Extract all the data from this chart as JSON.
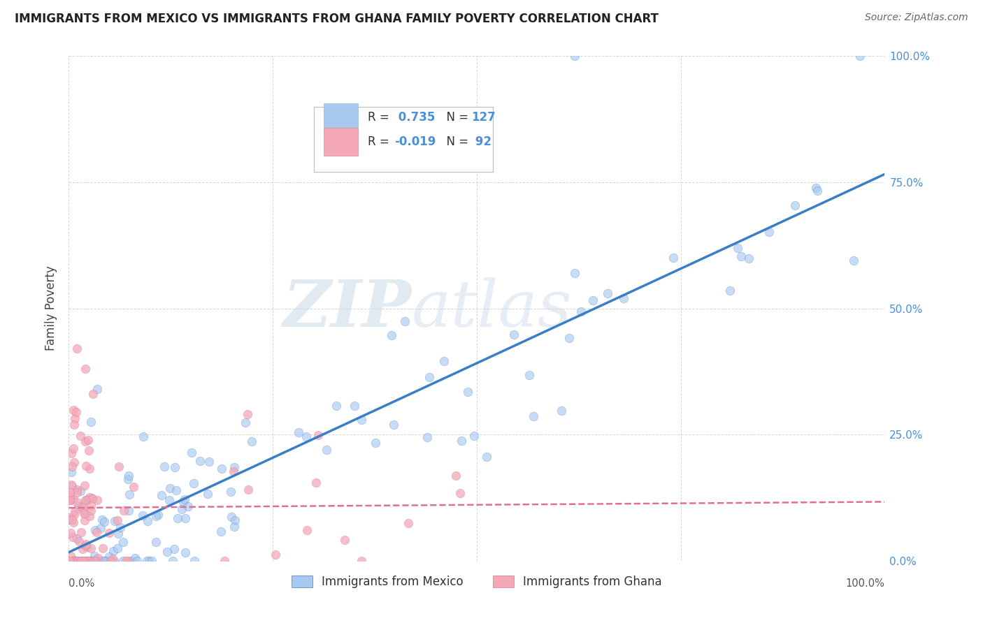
{
  "title": "IMMIGRANTS FROM MEXICO VS IMMIGRANTS FROM GHANA FAMILY POVERTY CORRELATION CHART",
  "source": "Source: ZipAtlas.com",
  "ylabel": "Family Poverty",
  "mexico_R": 0.735,
  "mexico_N": 127,
  "ghana_R": -0.019,
  "ghana_N": 92,
  "mexico_color": "#A8C8F0",
  "ghana_color": "#F4A8B8",
  "mexico_line_color": "#3A7EC8",
  "ghana_line_color": "#E07090",
  "background_color": "#FFFFFF",
  "grid_color": "#CCCCCC",
  "watermark_zip": "ZIP",
  "watermark_atlas": "atlas",
  "legend_labels": [
    "Immigrants from Mexico",
    "Immigrants from Ghana"
  ],
  "right_tick_color": "#4A90D9",
  "seed": 12345
}
